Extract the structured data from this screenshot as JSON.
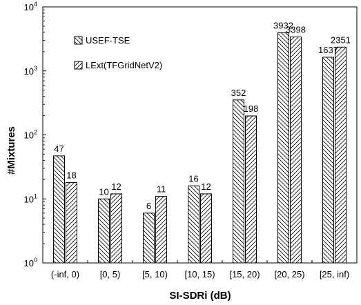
{
  "chart_data": {
    "type": "bar",
    "title": "",
    "xlabel": "SI-SDRi (dB)",
    "ylabel": "#Mixtures",
    "y_scale": "log",
    "ylim": [
      1,
      10000
    ],
    "y_ticks": [
      {
        "value": 1,
        "base": "10",
        "exp": "0"
      },
      {
        "value": 10,
        "base": "10",
        "exp": "1"
      },
      {
        "value": 100,
        "base": "10",
        "exp": "2"
      },
      {
        "value": 1000,
        "base": "10",
        "exp": "3"
      },
      {
        "value": 10000,
        "base": "10",
        "exp": "4"
      }
    ],
    "categories": [
      "(-inf, 0)",
      "[0, 5)",
      "[5, 10)",
      "[10, 15)",
      "[15, 20)",
      "[20, 25)",
      "[25, inf)"
    ],
    "series": [
      {
        "name": "USEF-TSE",
        "pattern": "back-hatch",
        "values": [
          47,
          10,
          6,
          16,
          352,
          3932,
          1637
        ]
      },
      {
        "name": "LExt(TFGridNetV2)",
        "pattern": "forward-hatch",
        "values": [
          18,
          12,
          11,
          12,
          198,
          3398,
          2351
        ]
      }
    ],
    "legend_position": "top-left",
    "grid": false
  }
}
